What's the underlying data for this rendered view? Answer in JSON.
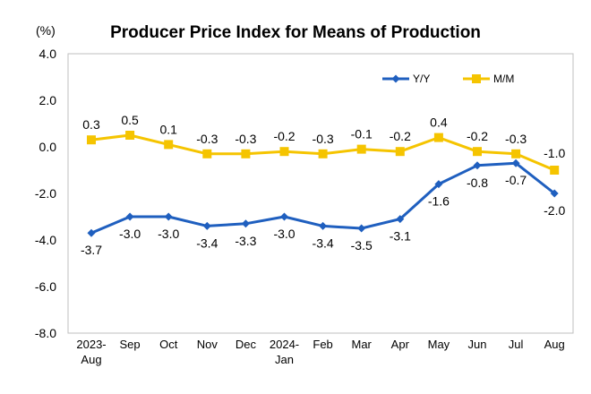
{
  "chart_data": {
    "type": "line",
    "title": "Producer Price Index for Means of Production",
    "unit": "(%)",
    "categories": [
      [
        "2023-",
        "Aug"
      ],
      [
        "Sep"
      ],
      [
        "Oct"
      ],
      [
        "Nov"
      ],
      [
        "Dec"
      ],
      [
        "2024-",
        "Jan"
      ],
      [
        "Feb"
      ],
      [
        "Mar"
      ],
      [
        "Apr"
      ],
      [
        "May"
      ],
      [
        "Jun"
      ],
      [
        "Jul"
      ],
      [
        "Aug"
      ]
    ],
    "ylim": [
      -8.0,
      4.0
    ],
    "yticks": [
      "4.0",
      "2.0",
      "0.0",
      "-2.0",
      "-4.0",
      "-6.0",
      "-8.0"
    ],
    "legend_position": "top-right",
    "grid": false,
    "series": [
      {
        "name": "Y/Y",
        "color": "#1f5fbf",
        "marker": "diamond",
        "values": [
          -3.7,
          -3.0,
          -3.0,
          -3.4,
          -3.3,
          -3.0,
          -3.4,
          -3.5,
          -3.1,
          -1.6,
          -0.8,
          -0.7,
          -2.0
        ],
        "labels": [
          "-3.7",
          "-3.0",
          "-3.0",
          "-3.4",
          "-3.3",
          "-3.0",
          "-3.4",
          "-3.5",
          "-3.1",
          "-1.6",
          "-0.8",
          "-0.7",
          "-2.0"
        ]
      },
      {
        "name": "M/M",
        "color": "#f5c400",
        "marker": "square",
        "values": [
          0.3,
          0.5,
          0.1,
          -0.3,
          -0.3,
          -0.2,
          -0.3,
          -0.1,
          -0.2,
          0.4,
          -0.2,
          -0.3,
          -1.0
        ],
        "labels": [
          "0.3",
          "0.5",
          "0.1",
          "-0.3",
          "-0.3",
          "-0.2",
          "-0.3",
          "-0.1",
          "-0.2",
          "0.4",
          "-0.2",
          "-0.3",
          "-1.0"
        ]
      }
    ]
  }
}
